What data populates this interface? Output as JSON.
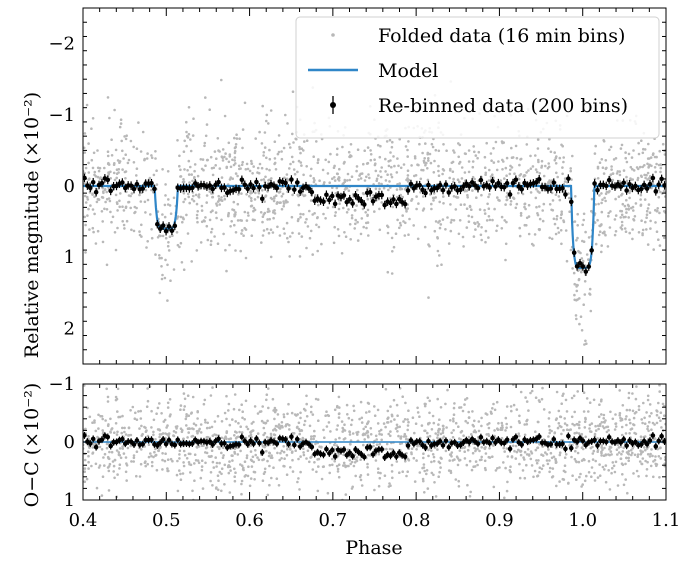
{
  "chart_data": [
    {
      "type": "scatter",
      "panel": "top",
      "xlabel": "",
      "ylabel": "Relative magnitude (×10⁻²)",
      "xlim": [
        0.4,
        1.1
      ],
      "ylim": [
        2.5,
        -2.5
      ],
      "y_inverted": true,
      "yticks": [
        -2,
        -1,
        0,
        1,
        2
      ],
      "ytick_labels": [
        "−2",
        "−1",
        "0",
        "1",
        "2"
      ],
      "grid": false,
      "legend_position": "top-right",
      "legend": [
        {
          "label": "Folded data (16 min bins)",
          "kind": "gray-dots",
          "color": "#b8b8b8"
        },
        {
          "label": "Model",
          "kind": "line",
          "color": "#2f86c8"
        },
        {
          "label": "Re-binned data (200 bins)",
          "kind": "errorbar",
          "color": "#000000"
        }
      ],
      "model": {
        "baseline": 0.0,
        "eclipses": [
          {
            "center": 0.5,
            "depth": 0.6,
            "width": 0.028
          },
          {
            "center": 1.0,
            "depth": 1.15,
            "width": 0.028
          }
        ],
        "phase_range": [
          0.4,
          1.1
        ]
      },
      "folded_data": {
        "n_points": 1800,
        "scatter_sigma": 0.55,
        "outlier_examples": [
          -2.0,
          1.9
        ]
      },
      "rebinned": {
        "n_bins": 200,
        "phase_range": [
          0.4,
          1.1
        ],
        "errorbar": 0.06,
        "scatter_sigma": 0.05
      }
    },
    {
      "type": "scatter",
      "panel": "bottom",
      "xlabel": "Phase",
      "ylabel": "O−C (×10⁻²)",
      "xlim": [
        0.4,
        1.1
      ],
      "ylim": [
        1,
        -1
      ],
      "y_inverted": true,
      "xticks": [
        0.4,
        0.5,
        0.6,
        0.7,
        0.8,
        0.9,
        1.0,
        1.1
      ],
      "xtick_labels": [
        "0.4",
        "0.5",
        "0.6",
        "0.7",
        "0.8",
        "0.9",
        "1.0",
        "1.1"
      ],
      "yticks": [
        -1,
        0,
        1
      ],
      "ytick_labels": [
        "−1",
        "0",
        "1"
      ],
      "grid": false,
      "model": {
        "baseline": 0.0
      },
      "residuals": {
        "n_points": 1800,
        "scatter_sigma": 0.5,
        "rebinned_errorbar": 0.06
      }
    }
  ],
  "colors": {
    "model": "#2f86c8",
    "folded": "#b8b8b8",
    "rebinned": "#000000"
  }
}
